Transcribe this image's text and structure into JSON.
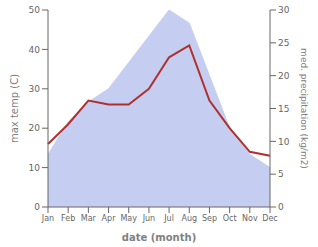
{
  "chart_data": {
    "type": "line",
    "categories": [
      "Jan",
      "Feb",
      "Mar",
      "Apr",
      "May",
      "Jun",
      "Jul",
      "Aug",
      "Sep",
      "Oct",
      "Nov",
      "Dec"
    ],
    "series": [
      {
        "type": "area",
        "axis": "y2",
        "color": "#c5cef0",
        "values": [
          8,
          13,
          16,
          18,
          22,
          26,
          30,
          28,
          20,
          12,
          8,
          6
        ]
      },
      {
        "type": "line",
        "color": "#b03030",
        "values": [
          16,
          21,
          27,
          26,
          26,
          30,
          38,
          41,
          27,
          20,
          14,
          13
        ]
      }
    ],
    "xlabel": "date (month)",
    "ylabel": "max temp (C)",
    "y2label": "med. precipitation (kg/m2)",
    "ylim": [
      0,
      50
    ],
    "yticks": [
      0,
      10,
      20,
      30,
      40,
      50
    ],
    "y2lim": [
      0,
      30
    ],
    "y2ticks": [
      0,
      5,
      10,
      15,
      20,
      25,
      30
    ],
    "grid": false
  }
}
